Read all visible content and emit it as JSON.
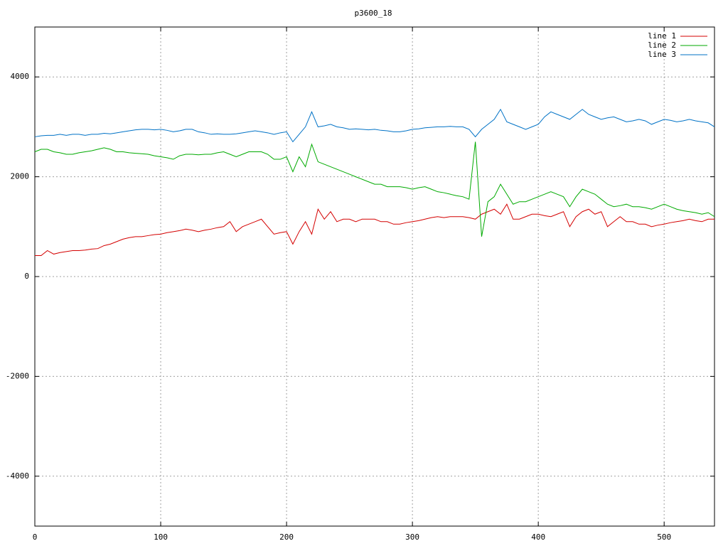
{
  "chart_data": {
    "type": "line",
    "title": "p3600_18",
    "x": [
      0,
      5,
      10,
      15,
      20,
      25,
      30,
      35,
      40,
      45,
      50,
      55,
      60,
      65,
      70,
      75,
      80,
      85,
      90,
      95,
      100,
      105,
      110,
      115,
      120,
      125,
      130,
      135,
      140,
      145,
      150,
      155,
      160,
      165,
      170,
      175,
      180,
      185,
      190,
      195,
      200,
      205,
      210,
      215,
      220,
      225,
      230,
      235,
      240,
      245,
      250,
      255,
      260,
      265,
      270,
      275,
      280,
      285,
      290,
      295,
      300,
      305,
      310,
      315,
      320,
      325,
      330,
      335,
      340,
      345,
      350,
      355,
      360,
      365,
      370,
      375,
      380,
      385,
      390,
      395,
      400,
      405,
      410,
      415,
      420,
      425,
      430,
      435,
      440,
      445,
      450,
      455,
      460,
      465,
      470,
      475,
      480,
      485,
      490,
      495,
      500,
      505,
      510,
      515,
      520,
      525,
      530,
      535,
      540
    ],
    "series": [
      {
        "name": "line 1",
        "color": "#d40000",
        "values": [
          420,
          420,
          520,
          450,
          480,
          500,
          520,
          520,
          530,
          550,
          560,
          620,
          650,
          700,
          750,
          780,
          800,
          800,
          820,
          840,
          850,
          880,
          900,
          920,
          950,
          930,
          900,
          930,
          950,
          980,
          1000,
          1100,
          900,
          1000,
          1050,
          1100,
          1150,
          1000,
          850,
          880,
          900,
          650,
          900,
          1100,
          850,
          1350,
          1150,
          1300,
          1100,
          1150,
          1150,
          1100,
          1150,
          1150,
          1150,
          1100,
          1100,
          1050,
          1050,
          1080,
          1100,
          1120,
          1150,
          1180,
          1200,
          1180,
          1200,
          1200,
          1200,
          1180,
          1150,
          1250,
          1300,
          1350,
          1250,
          1450,
          1150,
          1150,
          1200,
          1250,
          1250,
          1220,
          1200,
          1250,
          1300,
          1000,
          1200,
          1300,
          1350,
          1250,
          1300,
          1000,
          1100,
          1200,
          1100,
          1100,
          1050,
          1050,
          1000,
          1030,
          1050,
          1080,
          1100,
          1120,
          1150,
          1120,
          1100,
          1150,
          1150
        ]
      },
      {
        "name": "line 2",
        "color": "#00aa00",
        "values": [
          2500,
          2550,
          2550,
          2500,
          2480,
          2450,
          2450,
          2480,
          2500,
          2520,
          2550,
          2580,
          2550,
          2500,
          2500,
          2480,
          2470,
          2460,
          2450,
          2420,
          2400,
          2380,
          2350,
          2420,
          2450,
          2450,
          2440,
          2450,
          2450,
          2480,
          2500,
          2450,
          2400,
          2450,
          2500,
          2500,
          2500,
          2450,
          2350,
          2350,
          2400,
          2100,
          2400,
          2200,
          2650,
          2300,
          2250,
          2200,
          2150,
          2100,
          2050,
          2000,
          1950,
          1900,
          1850,
          1850,
          1800,
          1800,
          1800,
          1780,
          1750,
          1780,
          1800,
          1750,
          1700,
          1680,
          1650,
          1620,
          1600,
          1550,
          2700,
          800,
          1500,
          1600,
          1850,
          1650,
          1450,
          1500,
          1500,
          1550,
          1600,
          1650,
          1700,
          1650,
          1600,
          1400,
          1600,
          1750,
          1700,
          1650,
          1550,
          1450,
          1400,
          1420,
          1450,
          1400,
          1400,
          1380,
          1350,
          1400,
          1450,
          1400,
          1350,
          1320,
          1300,
          1280,
          1250,
          1280,
          1200
        ]
      },
      {
        "name": "line 3",
        "color": "#0072c6",
        "values": [
          2800,
          2820,
          2830,
          2830,
          2850,
          2830,
          2850,
          2850,
          2830,
          2850,
          2850,
          2870,
          2860,
          2880,
          2900,
          2920,
          2940,
          2950,
          2950,
          2940,
          2950,
          2930,
          2900,
          2920,
          2950,
          2950,
          2900,
          2880,
          2850,
          2860,
          2850,
          2850,
          2860,
          2880,
          2900,
          2920,
          2900,
          2880,
          2850,
          2880,
          2900,
          2700,
          2850,
          3000,
          3300,
          3000,
          3020,
          3050,
          3000,
          2980,
          2950,
          2960,
          2950,
          2940,
          2950,
          2930,
          2920,
          2900,
          2900,
          2920,
          2950,
          2960,
          2980,
          2990,
          3000,
          3000,
          3010,
          3000,
          3000,
          2950,
          2800,
          2950,
          3050,
          3150,
          3350,
          3100,
          3050,
          3000,
          2950,
          3000,
          3050,
          3200,
          3300,
          3250,
          3200,
          3150,
          3250,
          3350,
          3250,
          3200,
          3150,
          3180,
          3200,
          3150,
          3100,
          3120,
          3150,
          3120,
          3050,
          3100,
          3150,
          3130,
          3100,
          3120,
          3150,
          3120,
          3100,
          3080,
          3000
        ]
      }
    ],
    "xlim": [
      0,
      540
    ],
    "ylim": [
      -5000,
      5000
    ],
    "xticks": [
      0,
      100,
      200,
      300,
      400,
      500
    ],
    "yticks": [
      -4000,
      -2000,
      0,
      2000,
      4000
    ],
    "grid": true,
    "legend": "top right"
  }
}
